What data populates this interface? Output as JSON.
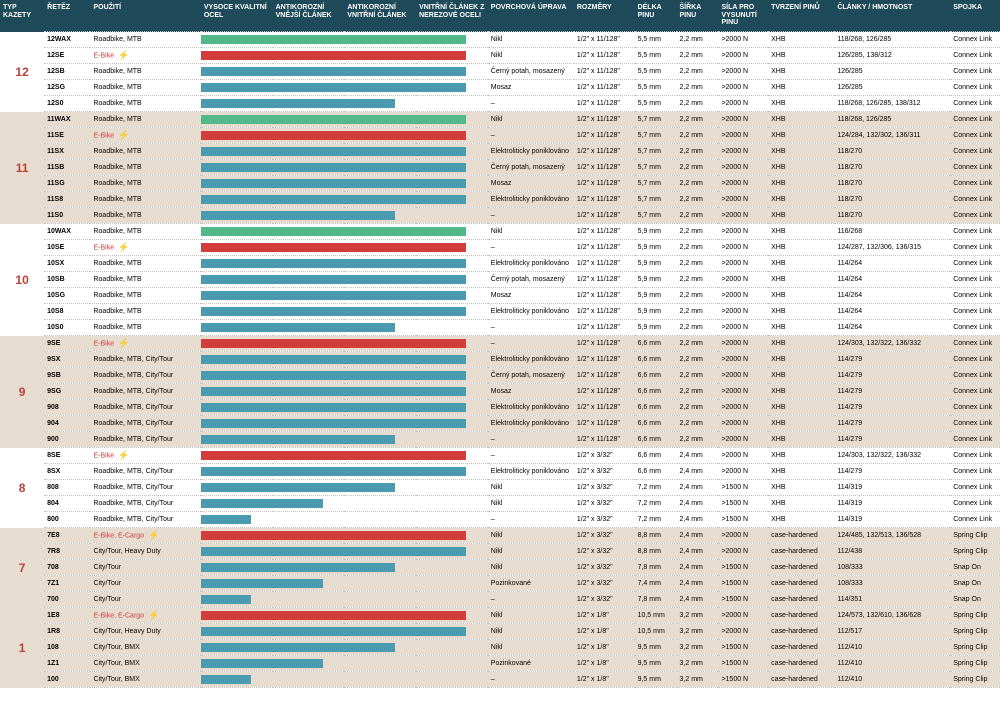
{
  "headers": [
    "TYP KAZETY",
    "ŘETĚZ",
    "POUŽITÍ",
    "VYSOCE KVALITNÍ OCEL",
    "ANTIKOROZNÍ VNĚJŠÍ ČLÁNEK",
    "ANTIKOROZNÍ VNITŘNÍ ČLÁNEK",
    "VNITŘNÍ ČLÁNEK Z NEREZOVÉ OCELI",
    "POVRCHOVÁ ÚPRAVA",
    "ROZMĚRY",
    "DÉLKA PINU",
    "ŠÍŘKA PINU",
    "SÍLA PRO VYSUNUTÍ PINU",
    "TVRZENÍ PINŮ",
    "ČLÁNKY / HMOTNOST",
    "SPOJKA"
  ],
  "colors": {
    "teal": "#4a9bb0",
    "green": "#52b88a",
    "red": "#d23c3c",
    "group_red": "#b8423a",
    "bg_white": "#ffffff",
    "bg_beige": "#e6ddd0"
  },
  "groups": [
    {
      "label": "12",
      "color_key": "group_red",
      "bg": "bg_white",
      "rows": [
        {
          "chain": "12WAX",
          "use": "Roadbike, MTB",
          "bolt": false,
          "bars": [
            4,
            "green"
          ],
          "surf": "Nikl",
          "dim": "1/2\" x 11/128\"",
          "plen": "5,5 mm",
          "pw": "2,2 mm",
          "force": ">2000 N",
          "hard": "XHB",
          "links": "118/268, 126/285",
          "conn": "Connex Link"
        },
        {
          "chain": "12SE",
          "use": "E-Bike",
          "bolt": true,
          "use_red": true,
          "bars": [
            4,
            "red"
          ],
          "surf": "Nikl",
          "dim": "1/2\" x 11/128\"",
          "plen": "5,5 mm",
          "pw": "2,2 mm",
          "force": ">2000 N",
          "hard": "XHB",
          "links": "126/285, 138/312",
          "conn": "Connex Link"
        },
        {
          "chain": "12SB",
          "use": "Roadbike, MTB",
          "bolt": false,
          "bars": [
            4,
            "teal"
          ],
          "surf": "Černý potah, mosazený",
          "dim": "1/2\" x 11/128\"",
          "plen": "5,5 mm",
          "pw": "2,2 mm",
          "force": ">2000 N",
          "hard": "XHB",
          "links": "126/285",
          "conn": "Connex Link"
        },
        {
          "chain": "12SG",
          "use": "Roadbike, MTB",
          "bolt": false,
          "bars": [
            4,
            "teal"
          ],
          "surf": "Mosaz",
          "dim": "1/2\" x 11/128\"",
          "plen": "5,5 mm",
          "pw": "2,2 mm",
          "force": ">2000 N",
          "hard": "XHB",
          "links": "126/285",
          "conn": "Connex Link"
        },
        {
          "chain": "12S0",
          "use": "Roadbike, MTB",
          "bolt": false,
          "bars": [
            3,
            "teal"
          ],
          "surf": "–",
          "dim": "1/2\" x 11/128\"",
          "plen": "5,5 mm",
          "pw": "2,2 mm",
          "force": ">2000 N",
          "hard": "XHB",
          "links": "118/268, 126/285, 138/312",
          "conn": "Connex Link"
        }
      ]
    },
    {
      "label": "11",
      "color_key": "group_red",
      "bg": "bg_beige",
      "rows": [
        {
          "chain": "11WAX",
          "use": "Roadbike, MTB",
          "bolt": false,
          "bars": [
            4,
            "green"
          ],
          "surf": "Nikl",
          "dim": "1/2\" x 11/128\"",
          "plen": "5,7 mm",
          "pw": "2,2 mm",
          "force": ">2000 N",
          "hard": "XHB",
          "links": "118/268, 126/285",
          "conn": "Connex Link"
        },
        {
          "chain": "11SE",
          "use": "E-Bike",
          "bolt": true,
          "use_red": true,
          "bars": [
            4,
            "red"
          ],
          "surf": "–",
          "dim": "1/2\" x 11/128\"",
          "plen": "5,7 mm",
          "pw": "2,2 mm",
          "force": ">2000 N",
          "hard": "XHB",
          "links": "124/284, 132/302, 136/311",
          "conn": "Connex Link"
        },
        {
          "chain": "11SX",
          "use": "Roadbike, MTB",
          "bolt": false,
          "bars": [
            4,
            "teal"
          ],
          "surf": "Elektroliticky poniklováno",
          "dim": "1/2\" x 11/128\"",
          "plen": "5,7 mm",
          "pw": "2,2 mm",
          "force": ">2000 N",
          "hard": "XHB",
          "links": "118/270",
          "conn": "Connex Link"
        },
        {
          "chain": "11SB",
          "use": "Roadbike, MTB",
          "bolt": false,
          "bars": [
            4,
            "teal"
          ],
          "surf": "Černý potah, mosazený",
          "dim": "1/2\" x 11/128\"",
          "plen": "5,7 mm",
          "pw": "2,2 mm",
          "force": ">2000 N",
          "hard": "XHB",
          "links": "118/270",
          "conn": "Connex Link"
        },
        {
          "chain": "11SG",
          "use": "Roadbike, MTB",
          "bolt": false,
          "bars": [
            4,
            "teal"
          ],
          "surf": "Mosaz",
          "dim": "1/2\" x 11/128\"",
          "plen": "5,7 mm",
          "pw": "2,2 mm",
          "force": ">2000 N",
          "hard": "XHB",
          "links": "118/270",
          "conn": "Connex Link"
        },
        {
          "chain": "11S8",
          "use": "Roadbike, MTB",
          "bolt": false,
          "bars": [
            4,
            "teal"
          ],
          "surf": "Elektroliticky poniklováno",
          "dim": "1/2\" x 11/128\"",
          "plen": "5,7 mm",
          "pw": "2,2 mm",
          "force": ">2000 N",
          "hard": "XHB",
          "links": "118/270",
          "conn": "Connex Link"
        },
        {
          "chain": "11S0",
          "use": "Roadbike, MTB",
          "bolt": false,
          "bars": [
            3,
            "teal"
          ],
          "surf": "–",
          "dim": "1/2\" x 11/128\"",
          "plen": "5,7 mm",
          "pw": "2,2 mm",
          "force": ">2000 N",
          "hard": "XHB",
          "links": "118/270",
          "conn": "Connex Link"
        }
      ]
    },
    {
      "label": "10",
      "color_key": "group_red",
      "bg": "bg_white",
      "rows": [
        {
          "chain": "10WAX",
          "use": "Roadbike, MTB",
          "bolt": false,
          "bars": [
            4,
            "green"
          ],
          "surf": "Nikl",
          "dim": "1/2\" x 11/128\"",
          "plen": "5,9 mm",
          "pw": "2,2 mm",
          "force": ">2000 N",
          "hard": "XHB",
          "links": "116/268",
          "conn": "Connex Link"
        },
        {
          "chain": "10SE",
          "use": "E-Bike",
          "bolt": true,
          "use_red": true,
          "bars": [
            4,
            "red"
          ],
          "surf": "–",
          "dim": "1/2\" x 11/128\"",
          "plen": "5,9 mm",
          "pw": "2,2 mm",
          "force": ">2000 N",
          "hard": "XHB",
          "links": "124/287, 132/306, 136/315",
          "conn": "Connex Link"
        },
        {
          "chain": "10SX",
          "use": "Roadbike, MTB",
          "bolt": false,
          "bars": [
            4,
            "teal"
          ],
          "surf": "Elektroliticky poniklováno",
          "dim": "1/2\" x 11/128\"",
          "plen": "5,9 mm",
          "pw": "2,2 mm",
          "force": ">2000 N",
          "hard": "XHB",
          "links": "114/264",
          "conn": "Connex Link"
        },
        {
          "chain": "10SB",
          "use": "Roadbike, MTB",
          "bolt": false,
          "bars": [
            4,
            "teal"
          ],
          "surf": "Černý potah, mosazený",
          "dim": "1/2\" x 11/128\"",
          "plen": "5,9 mm",
          "pw": "2,2 mm",
          "force": ">2000 N",
          "hard": "XHB",
          "links": "114/264",
          "conn": "Connex Link"
        },
        {
          "chain": "10SG",
          "use": "Roadbike, MTB",
          "bolt": false,
          "bars": [
            4,
            "teal"
          ],
          "surf": "Mosaz",
          "dim": "1/2\" x 11/128\"",
          "plen": "5,9 mm",
          "pw": "2,2 mm",
          "force": ">2000 N",
          "hard": "XHB",
          "links": "114/264",
          "conn": "Connex Link"
        },
        {
          "chain": "10S8",
          "use": "Roadbike, MTB",
          "bolt": false,
          "bars": [
            4,
            "teal"
          ],
          "surf": "Elektroliticky poniklováno",
          "dim": "1/2\" x 11/128\"",
          "plen": "5,9 mm",
          "pw": "2,2 mm",
          "force": ">2000 N",
          "hard": "XHB",
          "links": "114/264",
          "conn": "Connex Link"
        },
        {
          "chain": "10S0",
          "use": "Roadbike, MTB",
          "bolt": false,
          "bars": [
            3,
            "teal"
          ],
          "surf": "–",
          "dim": "1/2\" x 11/128\"",
          "plen": "5,9 mm",
          "pw": "2,2 mm",
          "force": ">2000 N",
          "hard": "XHB",
          "links": "114/264",
          "conn": "Connex Link"
        }
      ]
    },
    {
      "label": "9",
      "color_key": "group_red",
      "bg": "bg_beige",
      "rows": [
        {
          "chain": "9SE",
          "use": "E-Bike",
          "bolt": true,
          "use_red": true,
          "bars": [
            4,
            "red"
          ],
          "surf": "–",
          "dim": "1/2\" x 11/128\"",
          "plen": "6,6 mm",
          "pw": "2,2 mm",
          "force": ">2000 N",
          "hard": "XHB",
          "links": "124/303, 132/322, 136/332",
          "conn": "Connex Link"
        },
        {
          "chain": "9SX",
          "use": "Roadbike, MTB, City/Tour",
          "bolt": false,
          "bars": [
            4,
            "teal"
          ],
          "surf": "Elektroliticky poniklováno",
          "dim": "1/2\" x 11/128\"",
          "plen": "6,6 mm",
          "pw": "2,2 mm",
          "force": ">2000 N",
          "hard": "XHB",
          "links": "114/279",
          "conn": "Connex Link"
        },
        {
          "chain": "9SB",
          "use": "Roadbike, MTB, City/Tour",
          "bolt": false,
          "bars": [
            4,
            "teal"
          ],
          "surf": "Černý potah, mosazený",
          "dim": "1/2\" x 11/128\"",
          "plen": "6,6 mm",
          "pw": "2,2 mm",
          "force": ">2000 N",
          "hard": "XHB",
          "links": "114/279",
          "conn": "Connex Link"
        },
        {
          "chain": "9SG",
          "use": "Roadbike, MTB, City/Tour",
          "bolt": false,
          "bars": [
            4,
            "teal"
          ],
          "surf": "Mosaz",
          "dim": "1/2\" x 11/128\"",
          "plen": "6,6 mm",
          "pw": "2,2 mm",
          "force": ">2000 N",
          "hard": "XHB",
          "links": "114/279",
          "conn": "Connex Link"
        },
        {
          "chain": "908",
          "use": "Roadbike, MTB, City/Tour",
          "bolt": false,
          "bars": [
            4,
            "teal"
          ],
          "surf": "Elektroliticky poniklováno",
          "dim": "1/2\" x 11/128\"",
          "plen": "6,6 mm",
          "pw": "2,2 mm",
          "force": ">2000 N",
          "hard": "XHB",
          "links": "114/279",
          "conn": "Connex Link"
        },
        {
          "chain": "904",
          "use": "Roadbike, MTB, City/Tour",
          "bolt": false,
          "bars": [
            4,
            "teal"
          ],
          "surf": "Elektroliticky poniklováno",
          "dim": "1/2\" x 11/128\"",
          "plen": "6,6 mm",
          "pw": "2,2 mm",
          "force": ">2000 N",
          "hard": "XHB",
          "links": "114/279",
          "conn": "Connex Link"
        },
        {
          "chain": "900",
          "use": "Roadbike, MTB, City/Tour",
          "bolt": false,
          "bars": [
            3,
            "teal"
          ],
          "surf": "–",
          "dim": "1/2\" x 11/128\"",
          "plen": "6,6 mm",
          "pw": "2,2 mm",
          "force": ">2000 N",
          "hard": "XHB",
          "links": "114/279",
          "conn": "Connex Link"
        }
      ]
    },
    {
      "label": "8",
      "color_key": "group_red",
      "bg": "bg_white",
      "rows": [
        {
          "chain": "8SE",
          "use": "E-Bike",
          "bolt": true,
          "use_red": true,
          "bars": [
            4,
            "red"
          ],
          "surf": "–",
          "dim": "1/2\" x 3/32\"",
          "plen": "6,6 mm",
          "pw": "2,4 mm",
          "force": ">2000 N",
          "hard": "XHB",
          "links": "124/303, 132/322, 136/332",
          "conn": "Connex Link"
        },
        {
          "chain": "8SX",
          "use": "Roadbike, MTB, City/Tour",
          "bolt": false,
          "bars": [
            4,
            "teal"
          ],
          "surf": "Elektroliticky poniklováno",
          "dim": "1/2\" x 3/32\"",
          "plen": "6,6 mm",
          "pw": "2,4 mm",
          "force": ">2000 N",
          "hard": "XHB",
          "links": "114/279",
          "conn": "Connex Link"
        },
        {
          "chain": "808",
          "use": "Roadbike, MTB, City/Tour",
          "bolt": false,
          "bars": [
            3,
            "teal"
          ],
          "surf": "Nikl",
          "dim": "1/2\" x 3/32\"",
          "plen": "7,2 mm",
          "pw": "2,4 mm",
          "force": ">1500 N",
          "hard": "XHB",
          "links": "114/319",
          "conn": "Connex Link"
        },
        {
          "chain": "804",
          "use": "Roadbike, MTB, City/Tour",
          "bolt": false,
          "bars": [
            2,
            "teal"
          ],
          "surf": "Nikl",
          "dim": "1/2\" x 3/32\"",
          "plen": "7,2 mm",
          "pw": "2,4 mm",
          "force": ">1500 N",
          "hard": "XHB",
          "links": "114/319",
          "conn": "Connex Link"
        },
        {
          "chain": "800",
          "use": "Roadbike, MTB, City/Tour",
          "bolt": false,
          "bars": [
            1,
            "teal"
          ],
          "surf": "–",
          "dim": "1/2\" x 3/32\"",
          "plen": "7,2 mm",
          "pw": "2,4 mm",
          "force": ">1500 N",
          "hard": "XHB",
          "links": "114/319",
          "conn": "Connex Link"
        }
      ]
    },
    {
      "label": "7",
      "color_key": "group_red",
      "bg": "bg_beige",
      "rows": [
        {
          "chain": "7E8",
          "use": "E-Bike, E-Cargo",
          "bolt": true,
          "use_red": true,
          "bars": [
            4,
            "red"
          ],
          "surf": "Nikl",
          "dim": "1/2\" x 3/32\"",
          "plen": "8,8 mm",
          "pw": "2,4 mm",
          "force": ">2000 N",
          "hard": "case-hardened",
          "links": "124/485, 132/513, 136/528",
          "conn": "Spring Clip"
        },
        {
          "chain": "7R8",
          "use": "City/Tour, Heavy Duty",
          "bolt": false,
          "bars": [
            4,
            "teal"
          ],
          "surf": "Nikl",
          "dim": "1/2\" x 3/32\"",
          "plen": "8,8 mm",
          "pw": "2,4 mm",
          "force": ">2000 N",
          "hard": "case-hardened",
          "links": "112/438",
          "conn": "Spring Clip"
        },
        {
          "chain": "708",
          "use": "City/Tour",
          "bolt": false,
          "bars": [
            3,
            "teal"
          ],
          "surf": "Nikl",
          "dim": "1/2\" x 3/32\"",
          "plen": "7,8 mm",
          "pw": "2,4 mm",
          "force": ">1500 N",
          "hard": "case-hardened",
          "links": "108/333",
          "conn": "Snap On"
        },
        {
          "chain": "7Z1",
          "use": "City/Tour",
          "bolt": false,
          "bars": [
            2,
            "teal"
          ],
          "surf": "Pozinkované",
          "dim": "1/2\" x 3/32\"",
          "plen": "7,4 mm",
          "pw": "2,4 mm",
          "force": ">1500 N",
          "hard": "case-hardened",
          "links": "108/333",
          "conn": "Snap On"
        },
        {
          "chain": "700",
          "use": "City/Tour",
          "bolt": false,
          "bars": [
            1,
            "teal"
          ],
          "surf": "–",
          "dim": "1/2\" x 3/32\"",
          "plen": "7,8 mm",
          "pw": "2,4 mm",
          "force": ">1500 N",
          "hard": "case-hardened",
          "links": "114/351",
          "conn": "Snap On"
        }
      ]
    },
    {
      "label": "1",
      "color_key": "group_red",
      "bg": "bg_beige",
      "rows": [
        {
          "chain": "1E8",
          "use": "E-Bike, E-Cargo",
          "bolt": true,
          "use_red": true,
          "bars": [
            4,
            "red"
          ],
          "surf": "Nikl",
          "dim": "1/2\" x 1/8\"",
          "plen": "10,5 mm",
          "pw": "3,2 mm",
          "force": ">2000 N",
          "hard": "case-hardened",
          "links": "124/573, 132/610, 136/628",
          "conn": "Spring Clip"
        },
        {
          "chain": "1R8",
          "use": "City/Tour, Heavy Duty",
          "bolt": false,
          "bars": [
            4,
            "teal"
          ],
          "surf": "Nikl",
          "dim": "1/2\" x 1/8\"",
          "plen": "10,5 mm",
          "pw": "3,2 mm",
          "force": ">2000 N",
          "hard": "case-hardened",
          "links": "112/517",
          "conn": "Spring Clip"
        },
        {
          "chain": "108",
          "use": "City/Tour, BMX",
          "bolt": false,
          "bars": [
            3,
            "teal"
          ],
          "surf": "Nikl",
          "dim": "1/2\" x 1/8\"",
          "plen": "9,5 mm",
          "pw": "3,2 mm",
          "force": ">1500 N",
          "hard": "case-hardened",
          "links": "112/410",
          "conn": "Spring Clip"
        },
        {
          "chain": "1Z1",
          "use": "City/Tour, BMX",
          "bolt": false,
          "bars": [
            2,
            "teal"
          ],
          "surf": "Pozinkované",
          "dim": "1/2\" x 1/8\"",
          "plen": "9,5 mm",
          "pw": "3,2 mm",
          "force": ">1500 N",
          "hard": "case-hardened",
          "links": "112/410",
          "conn": "Spring Clip"
        },
        {
          "chain": "100",
          "use": "City/Tour, BMX",
          "bolt": false,
          "bars": [
            1,
            "teal"
          ],
          "surf": "–",
          "dim": "1/2\" x 1/8\"",
          "plen": "9,5 mm",
          "pw": "3,2 mm",
          "force": ">1500 N",
          "hard": "case-hardened",
          "links": "112/410",
          "conn": "Spring Clip"
        }
      ]
    }
  ]
}
